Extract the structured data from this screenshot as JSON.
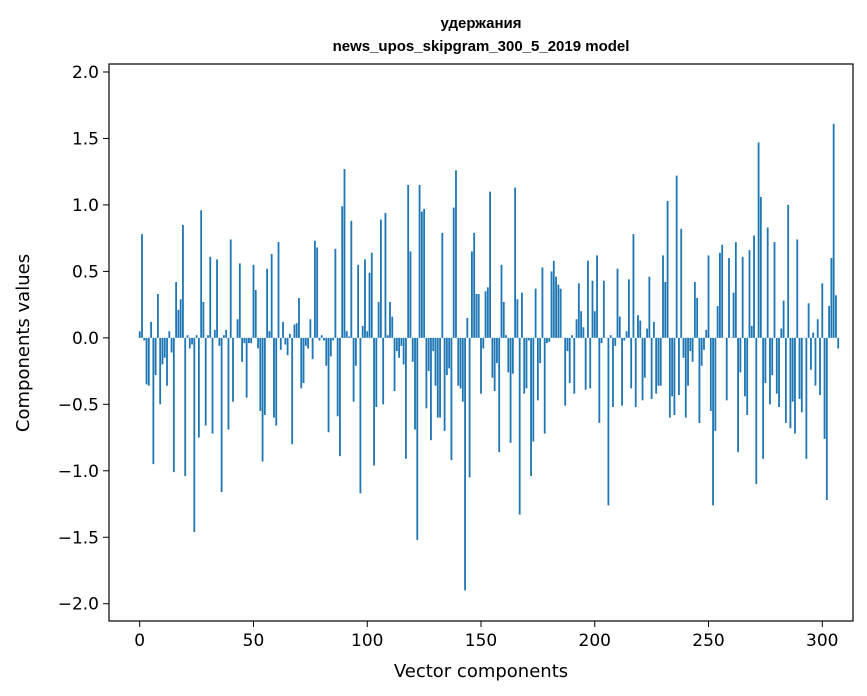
{
  "chart_data": {
    "type": "bar",
    "title": "удержания",
    "subtitle": "news_upos_skipgram_300_5_2019 model",
    "xlabel": "Vector components",
    "ylabel": "Components values",
    "xlim": [
      -13.5,
      313.5
    ],
    "ylim": [
      -2.13,
      2.06
    ],
    "xticks": [
      0,
      50,
      100,
      150,
      200,
      250,
      300
    ],
    "yticks": [
      -2.0,
      -1.5,
      -1.0,
      -0.5,
      0.0,
      0.5,
      1.0,
      1.5,
      2.0
    ],
    "ytick_labels": [
      "−2.0",
      "−1.5",
      "−1.0",
      "−0.5",
      "0.0",
      "0.5",
      "1.0",
      "1.5",
      "2.0"
    ],
    "color": "#1f77b4",
    "grid": false,
    "values": [
      0.05,
      0.78,
      -0.02,
      -0.35,
      -0.36,
      0.12,
      -0.95,
      -0.28,
      0.33,
      -0.5,
      -0.2,
      -0.15,
      -0.36,
      0.05,
      -0.11,
      -1.01,
      0.42,
      0.21,
      0.29,
      0.85,
      -1.04,
      0.02,
      -0.08,
      -0.05,
      -1.46,
      0.02,
      -0.75,
      0.96,
      0.27,
      -0.66,
      0.02,
      0.61,
      -0.72,
      0.06,
      0.59,
      -0.06,
      -1.16,
      0.02,
      0.06,
      -0.69,
      0.74,
      -0.48,
      0.0,
      0.14,
      0.56,
      -0.18,
      -0.04,
      -0.45,
      -0.04,
      -0.04,
      0.55,
      0.36,
      -0.08,
      -0.55,
      -0.93,
      -0.58,
      0.52,
      0.05,
      0.63,
      -0.6,
      -0.66,
      0.72,
      -0.09,
      0.12,
      -0.05,
      -0.13,
      0.03,
      -0.8,
      0.1,
      0.11,
      0.3,
      -0.38,
      -0.34,
      -0.06,
      -0.08,
      0.14,
      -0.16,
      0.73,
      0.68,
      -0.02,
      0.02,
      -0.02,
      -0.21,
      -0.71,
      -0.14,
      -0.02,
      0.67,
      -0.59,
      -0.89,
      0.99,
      1.27,
      0.05,
      0.01,
      0.88,
      -0.48,
      -0.21,
      0.55,
      -1.17,
      0.09,
      0.59,
      0.05,
      0.49,
      0.64,
      -0.96,
      -0.52,
      0.27,
      0.89,
      -0.5,
      0.94,
      0.02,
      0.27,
      0.16,
      -0.4,
      -0.1,
      -0.15,
      -0.06,
      -0.2,
      -0.91,
      1.15,
      0.65,
      -0.18,
      -0.69,
      -1.52,
      1.15,
      0.95,
      0.97,
      -0.53,
      -0.25,
      -0.77,
      -0.1,
      -0.36,
      -0.6,
      -0.6,
      0.79,
      -0.7,
      -0.28,
      -0.23,
      -0.92,
      0.98,
      1.26,
      -0.36,
      -0.38,
      -0.48,
      -1.9,
      0.15,
      -1.05,
      0.65,
      0.79,
      0.33,
      0.33,
      -0.42,
      -0.08,
      0.35,
      0.38,
      1.1,
      -0.3,
      -0.4,
      -0.19,
      -0.86,
      0.55,
      0.27,
      0.02,
      -0.26,
      -0.79,
      -0.27,
      1.13,
      0.29,
      -1.33,
      0.34,
      -0.42,
      -0.38,
      -0.02,
      -1.04,
      -0.78,
      0.37,
      -0.47,
      -0.19,
      0.53,
      -0.72,
      -0.04,
      -0.03,
      0.5,
      0.58,
      0.46,
      0.4,
      0.37,
      0.0,
      -0.51,
      -0.1,
      -0.34,
      0.02,
      -0.42,
      0.14,
      0.41,
      0.2,
      0.08,
      -0.39,
      0.58,
      -0.38,
      0.43,
      0.2,
      0.62,
      -0.64,
      -0.04,
      0.43,
      0.0,
      -1.26,
      0.02,
      -0.52,
      -0.06,
      0.52,
      0.16,
      -0.51,
      -0.02,
      0.05,
      0.44,
      -0.38,
      0.78,
      -0.52,
      0.17,
      0.13,
      -0.47,
      -0.3,
      0.07,
      0.46,
      -0.46,
      0.12,
      -0.42,
      -0.36,
      -0.36,
      0.62,
      0.42,
      1.03,
      -0.6,
      -0.44,
      -0.58,
      1.22,
      -0.43,
      0.82,
      -0.15,
      -0.6,
      -0.36,
      -0.1,
      -0.18,
      0.42,
      0.3,
      -0.64,
      -0.21,
      -0.09,
      0.06,
      0.62,
      -0.55,
      -1.26,
      -0.7,
      0.24,
      0.64,
      0.7,
      0.0,
      -0.47,
      0.6,
      0.0,
      0.34,
      0.72,
      -0.86,
      -0.26,
      0.61,
      -0.44,
      -0.58,
      0.66,
      0.09,
      0.77,
      -1.1,
      1.47,
      1.06,
      -0.91,
      -0.34,
      0.83,
      -0.5,
      -0.28,
      0.72,
      -0.42,
      -0.52,
      0.07,
      0.28,
      -0.64,
      1.0,
      -0.68,
      -0.48,
      -0.72,
      0.74,
      -0.46,
      -0.56,
      0.0,
      -0.91,
      0.26,
      -0.24,
      0.04,
      -0.36,
      0.14,
      -0.43,
      0.41,
      -0.76,
      -1.22,
      0.24,
      0.6,
      1.61,
      0.32,
      -0.08
    ]
  }
}
